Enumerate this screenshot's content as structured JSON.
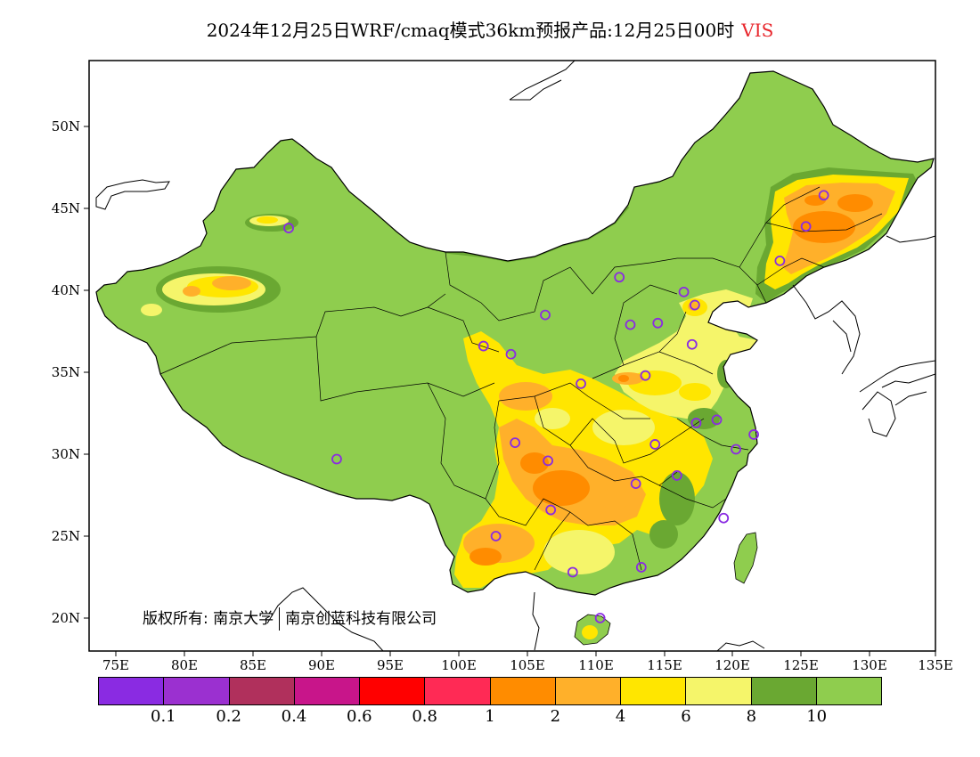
{
  "title": {
    "main": "2024年12月25日WRF/cmaq模式36km预报产品:12月25日00时",
    "variable": "VIS"
  },
  "axes": {
    "lon_labels": [
      "75E",
      "80E",
      "85E",
      "90E",
      "95E",
      "100E",
      "105E",
      "110E",
      "115E",
      "120E",
      "125E",
      "130E",
      "135E"
    ],
    "lat_labels": [
      "50N",
      "45N",
      "40N",
      "35N",
      "30N",
      "25N",
      "20N"
    ]
  },
  "copyright": {
    "prefix": "版权所有:",
    "org1": "南京大学",
    "org2": "南京创蓝科技有限公司"
  },
  "legend": {
    "colors": [
      "#8a2be2",
      "#9b30d0",
      "#b0305c",
      "#c8158a",
      "#ff0000",
      "#ff2a55",
      "#ff8c00",
      "#ffb02a",
      "#ffe600",
      "#f5f56a",
      "#6aa832",
      "#8fcd4e"
    ],
    "labels": [
      "0.1",
      "0.2",
      "0.4",
      "0.6",
      "0.8",
      "1",
      "2",
      "4",
      "6",
      "8",
      "10"
    ]
  },
  "stations": [
    [
      87.6,
      43.8
    ],
    [
      91.1,
      29.7
    ],
    [
      103.8,
      36.1
    ],
    [
      101.8,
      36.6
    ],
    [
      106.3,
      38.5
    ],
    [
      111.7,
      40.8
    ],
    [
      112.5,
      37.9
    ],
    [
      114.5,
      38.0
    ],
    [
      116.4,
      39.9
    ],
    [
      117.2,
      39.1
    ],
    [
      117.0,
      36.7
    ],
    [
      113.6,
      34.8
    ],
    [
      108.9,
      34.3
    ],
    [
      104.1,
      30.7
    ],
    [
      106.5,
      29.6
    ],
    [
      106.7,
      26.6
    ],
    [
      102.7,
      25.0
    ],
    [
      108.3,
      22.8
    ],
    [
      113.3,
      23.1
    ],
    [
      110.3,
      20.0
    ],
    [
      112.9,
      28.2
    ],
    [
      114.3,
      30.6
    ],
    [
      115.9,
      28.7
    ],
    [
      117.3,
      31.9
    ],
    [
      118.8,
      32.1
    ],
    [
      120.2,
      30.3
    ],
    [
      121.5,
      31.2
    ],
    [
      119.3,
      26.1
    ],
    [
      123.4,
      41.8
    ],
    [
      125.3,
      43.9
    ],
    [
      126.6,
      45.8
    ]
  ]
}
